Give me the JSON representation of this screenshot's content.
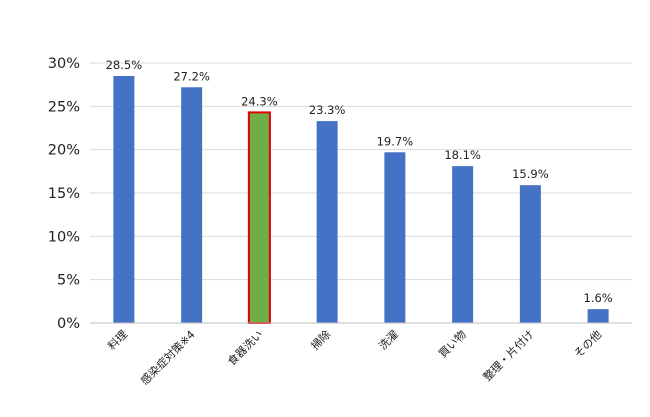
{
  "chart_data": {
    "type": "bar",
    "categories": [
      "料理",
      "感染症対策※4",
      "食器洗い",
      "掃除",
      "洗濯",
      "買い物",
      "整理・片付け",
      "その他"
    ],
    "values": [
      28.5,
      27.2,
      24.3,
      23.3,
      19.7,
      18.1,
      15.9,
      1.6
    ],
    "data_labels": [
      "28.5%",
      "27.2%",
      "24.3%",
      "23.3%",
      "19.7%",
      "18.1%",
      "15.9%",
      "1.6%"
    ],
    "y_ticks": [
      "0%",
      "5%",
      "10%",
      "15%",
      "20%",
      "25%",
      "30%"
    ],
    "ylim": [
      0,
      30
    ],
    "grid": true,
    "highlight_index": 2,
    "colors": {
      "bar": "#4472C4",
      "highlight_fill": "#70AD47",
      "highlight_border": "#E00000",
      "grid": "#D9D9D9",
      "axis": "#BFBFBF"
    }
  }
}
